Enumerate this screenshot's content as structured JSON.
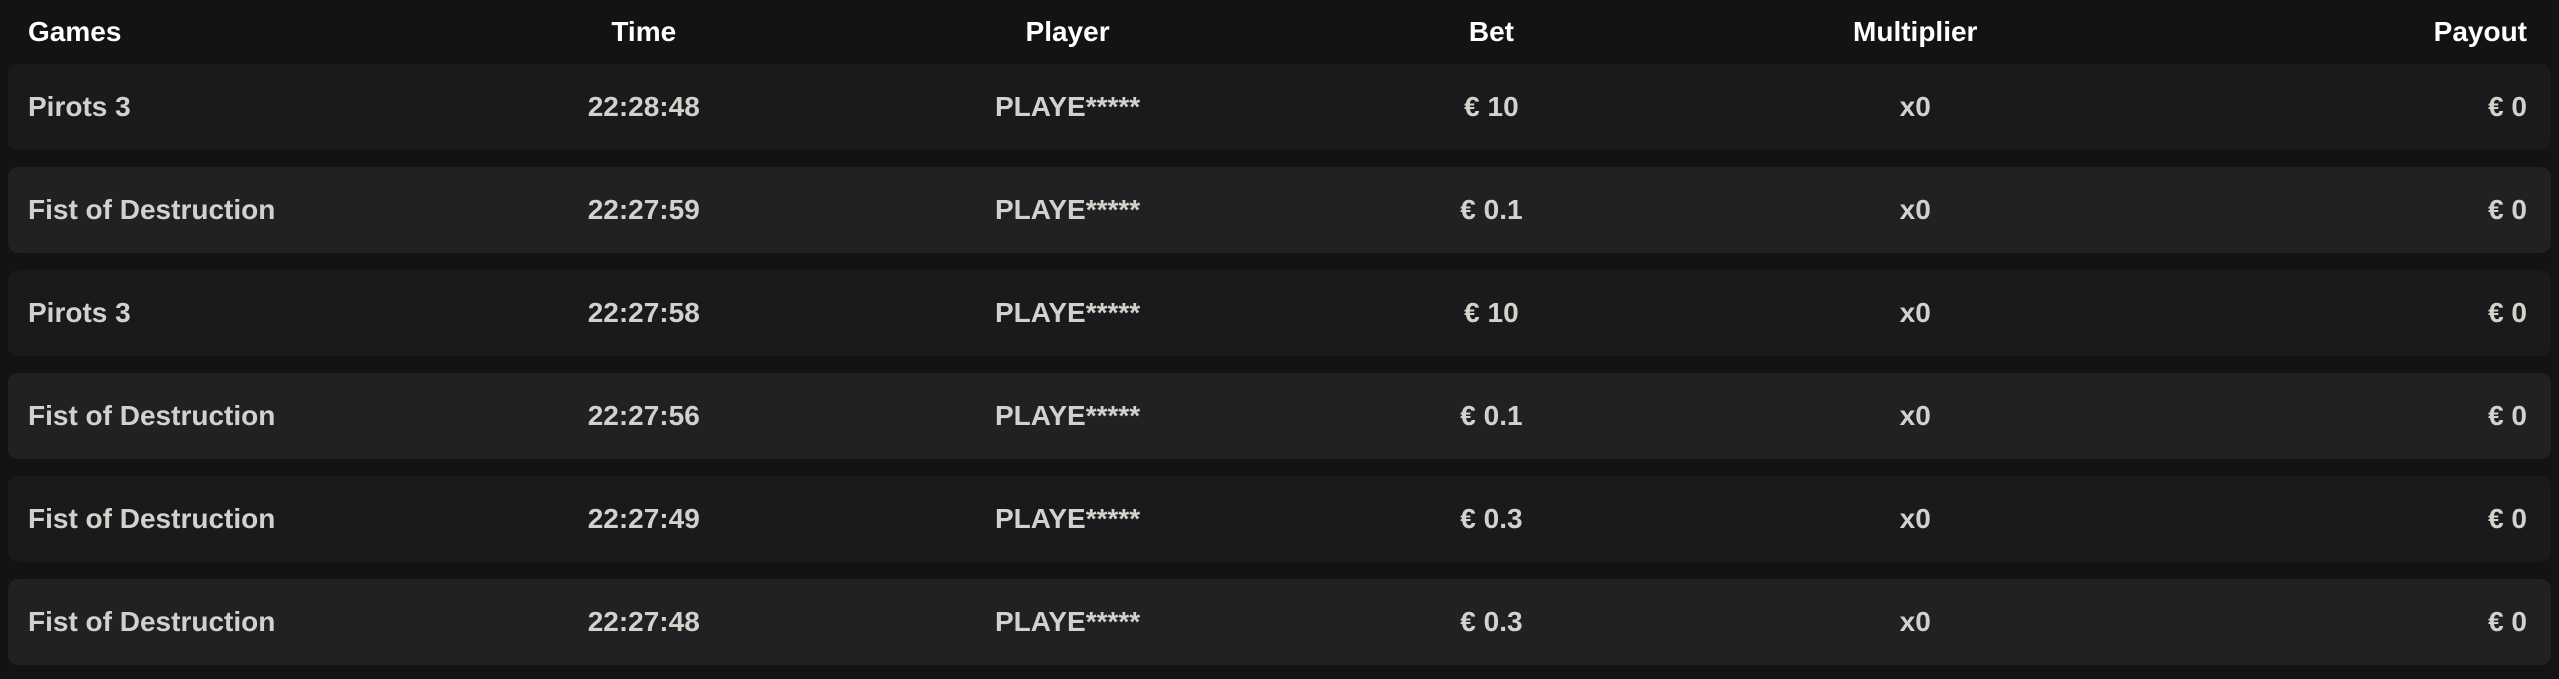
{
  "colors": {
    "page-bg": "#131314",
    "row-dark": "#1a1a1c",
    "row-light": "#212124",
    "header-text": "#ffffff",
    "cell-text": "#d2d2cd"
  },
  "table": {
    "headers": {
      "games": "Games",
      "time": "Time",
      "player": "Player",
      "bet": "Bet",
      "multiplier": "Multiplier",
      "payout": "Payout"
    },
    "rows": [
      {
        "game": "Pirots 3",
        "time": "22:28:48",
        "player": "PLAYE*****",
        "bet": "€ 10",
        "multiplier": "x0",
        "payout": "€ 0"
      },
      {
        "game": "Fist of Destruction",
        "time": "22:27:59",
        "player": "PLAYE*****",
        "bet": "€ 0.1",
        "multiplier": "x0",
        "payout": "€ 0"
      },
      {
        "game": "Pirots 3",
        "time": "22:27:58",
        "player": "PLAYE*****",
        "bet": "€ 10",
        "multiplier": "x0",
        "payout": "€ 0"
      },
      {
        "game": "Fist of Destruction",
        "time": "22:27:56",
        "player": "PLAYE*****",
        "bet": "€ 0.1",
        "multiplier": "x0",
        "payout": "€ 0"
      },
      {
        "game": "Fist of Destruction",
        "time": "22:27:49",
        "player": "PLAYE*****",
        "bet": "€ 0.3",
        "multiplier": "x0",
        "payout": "€ 0"
      },
      {
        "game": "Fist of Destruction",
        "time": "22:27:48",
        "player": "PLAYE*****",
        "bet": "€ 0.3",
        "multiplier": "x0",
        "payout": "€ 0"
      }
    ]
  }
}
